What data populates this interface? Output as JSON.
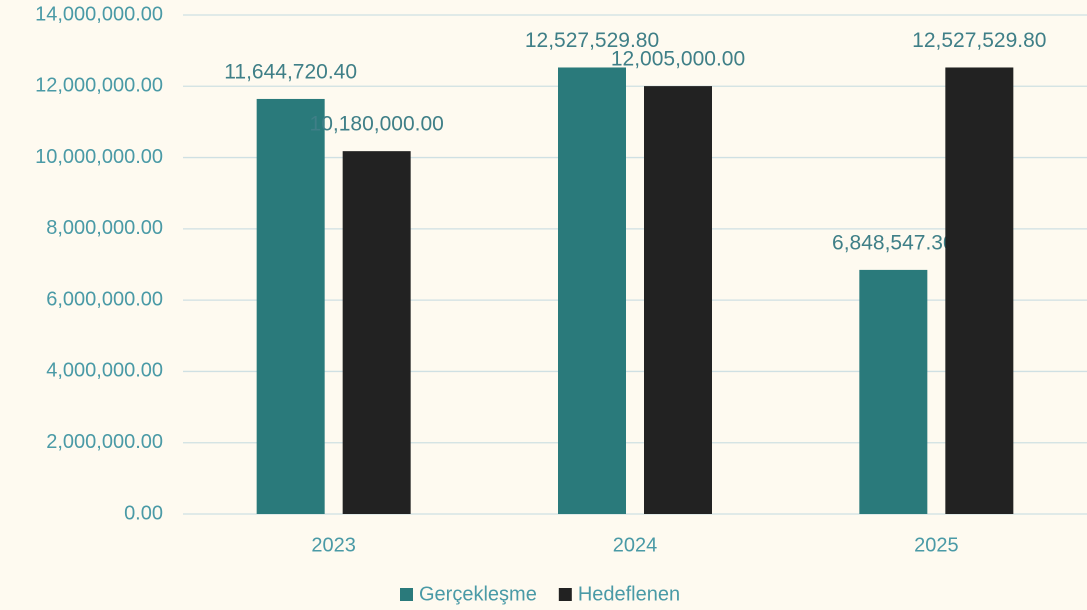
{
  "chart_data": {
    "type": "bar",
    "categories": [
      "2023",
      "2024",
      "2025"
    ],
    "series": [
      {
        "name": "Gerçekleşme",
        "color": "#2a7a7b",
        "values": [
          11644720.4,
          12527529.8,
          6848547.3
        ],
        "value_labels": [
          "11,644,720.40",
          "12,527,529.80",
          "6,848,547.30"
        ]
      },
      {
        "name": "Hedeflenen",
        "color": "#222222",
        "values": [
          10180000.0,
          12005000.0,
          12527529.8
        ],
        "value_labels": [
          "10,180,000.00",
          "12,005,000.00",
          "12,527,529.80"
        ]
      }
    ],
    "ylim": [
      0,
      14000000
    ],
    "yticks": [
      {
        "value": 0,
        "label": "0.00"
      },
      {
        "value": 2000000,
        "label": "2,000,000.00"
      },
      {
        "value": 4000000,
        "label": "4,000,000.00"
      },
      {
        "value": 6000000,
        "label": "6,000,000.00"
      },
      {
        "value": 8000000,
        "label": "8,000,000.00"
      },
      {
        "value": 10000000,
        "label": "10,000,000.00"
      },
      {
        "value": 12000000,
        "label": "12,000,000.00"
      },
      {
        "value": 14000000,
        "label": "14,000,000.00"
      }
    ],
    "grid": true,
    "legend": "bottom"
  }
}
